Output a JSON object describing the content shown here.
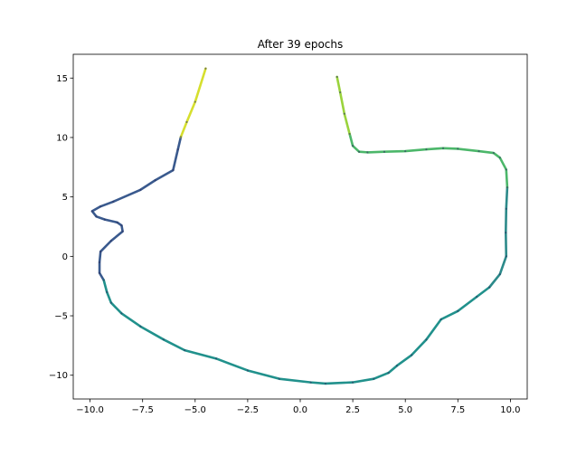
{
  "chart_data": {
    "type": "scatter",
    "title": "After 39 epochs",
    "xlabel": "",
    "ylabel": "",
    "xlim": [
      -10.8,
      10.8
    ],
    "ylim": [
      -12,
      17
    ],
    "xticks": [
      -10.0,
      -7.5,
      -5.0,
      -2.5,
      0.0,
      2.5,
      5.0,
      7.5,
      10.0
    ],
    "xtick_labels": [
      "−10.0",
      "−7.5",
      "−5.0",
      "−2.5",
      "0.0",
      "2.5",
      "5.0",
      "7.5",
      "10.0"
    ],
    "yticks": [
      -10,
      -5,
      0,
      5,
      10,
      15
    ],
    "ytick_labels": [
      "−10",
      "−5",
      "0",
      "5",
      "10",
      "15"
    ],
    "grid": false,
    "colormap": "viridis",
    "series": [
      {
        "color": "#3a5a8e",
        "points": [
          [
            -5.68,
            10.05
          ],
          [
            -5.82,
            9.0
          ],
          [
            -6.05,
            7.25
          ],
          [
            -6.9,
            6.4
          ],
          [
            -7.6,
            5.6
          ],
          [
            -8.9,
            4.6
          ],
          [
            -9.5,
            4.2
          ],
          [
            -9.9,
            3.8
          ],
          [
            -9.7,
            3.35
          ],
          [
            -9.3,
            3.1
          ],
          [
            -8.7,
            2.85
          ],
          [
            -8.5,
            2.6
          ],
          [
            -8.45,
            2.1
          ],
          [
            -9.0,
            1.3
          ],
          [
            -9.5,
            0.4
          ],
          [
            -9.55,
            -0.5
          ],
          [
            -9.55,
            -1.4
          ],
          [
            -9.35,
            -2.0
          ]
        ]
      },
      {
        "color": "#21918c",
        "points": [
          [
            -9.35,
            -2.0
          ],
          [
            -9.2,
            -3.0
          ],
          [
            -9.0,
            -3.9
          ],
          [
            -8.5,
            -4.8
          ],
          [
            -7.6,
            -5.9
          ],
          [
            -6.5,
            -7.0
          ],
          [
            -5.5,
            -7.9
          ],
          [
            -4.0,
            -8.6
          ],
          [
            -2.5,
            -9.6
          ],
          [
            -1.0,
            -10.3
          ],
          [
            0.5,
            -10.6
          ],
          [
            1.2,
            -10.7
          ],
          [
            2.5,
            -10.6
          ],
          [
            3.5,
            -10.3
          ],
          [
            4.2,
            -9.8
          ],
          [
            4.6,
            -9.2
          ],
          [
            5.3,
            -8.3
          ],
          [
            6.0,
            -7.0
          ],
          [
            6.7,
            -5.3
          ],
          [
            7.5,
            -4.6
          ],
          [
            8.4,
            -3.4
          ],
          [
            9.0,
            -2.6
          ]
        ]
      },
      {
        "color": "#2c8a8a",
        "points": [
          [
            9.0,
            -2.6
          ],
          [
            9.5,
            -1.5
          ],
          [
            9.8,
            0.0
          ],
          [
            9.78,
            2.0
          ],
          [
            9.8,
            4.0
          ],
          [
            9.85,
            5.8
          ]
        ]
      },
      {
        "color": "#4cb76a",
        "points": [
          [
            9.85,
            5.8
          ],
          [
            9.8,
            7.3
          ],
          [
            9.5,
            8.3
          ],
          [
            9.2,
            8.7
          ],
          [
            8.5,
            8.85
          ],
          [
            7.5,
            9.05
          ],
          [
            6.8,
            9.1
          ],
          [
            6.0,
            9.0
          ],
          [
            5.0,
            8.85
          ],
          [
            4.0,
            8.8
          ],
          [
            3.2,
            8.75
          ],
          [
            2.8,
            8.8
          ],
          [
            2.5,
            9.3
          ],
          [
            2.35,
            10.3
          ]
        ]
      },
      {
        "color": "#9ad33c",
        "points": [
          [
            2.35,
            10.3
          ],
          [
            2.1,
            12.0
          ],
          [
            1.9,
            13.8
          ],
          [
            1.75,
            15.1
          ]
        ]
      },
      {
        "color": "#d6df2e",
        "points": [
          [
            -5.68,
            10.05
          ],
          [
            -5.4,
            11.3
          ],
          [
            -5.0,
            13.0
          ],
          [
            -4.5,
            15.8
          ]
        ]
      }
    ]
  }
}
